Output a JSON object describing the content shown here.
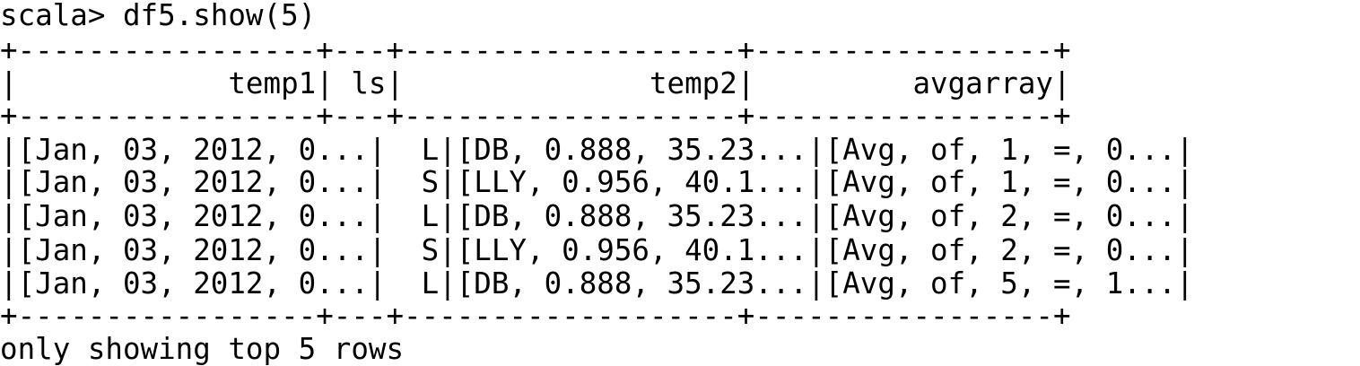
{
  "terminal": {
    "command_line": "scala> df5.show(5)",
    "table": {
      "border_top": "+-----------------+---+-------------------+-----------------+",
      "header_row": "|            temp1| ls|              temp2|         avgarray|",
      "border_mid": "+-----------------+---+-------------------+-----------------+",
      "rows": [
        "|[Jan, 03, 2012, 0...|  L|[DB, 0.888, 35.23...|[Avg, of, 1, =, 0...|",
        "|[Jan, 03, 2012, 0...|  S|[LLY, 0.956, 40.1...|[Avg, of, 1, =, 0...|",
        "|[Jan, 03, 2012, 0...|  L|[DB, 0.888, 35.23...|[Avg, of, 2, =, 0...|",
        "|[Jan, 03, 2012, 0...|  S|[LLY, 0.956, 40.1...|[Avg, of, 2, =, 0...|",
        "|[Jan, 03, 2012, 0...|  L|[DB, 0.888, 35.23...|[Avg, of, 5, =, 1...|"
      ],
      "border_bottom": "+-----------------+---+-------------------+-----------------+"
    },
    "footer": "only showing top 5 rows"
  }
}
